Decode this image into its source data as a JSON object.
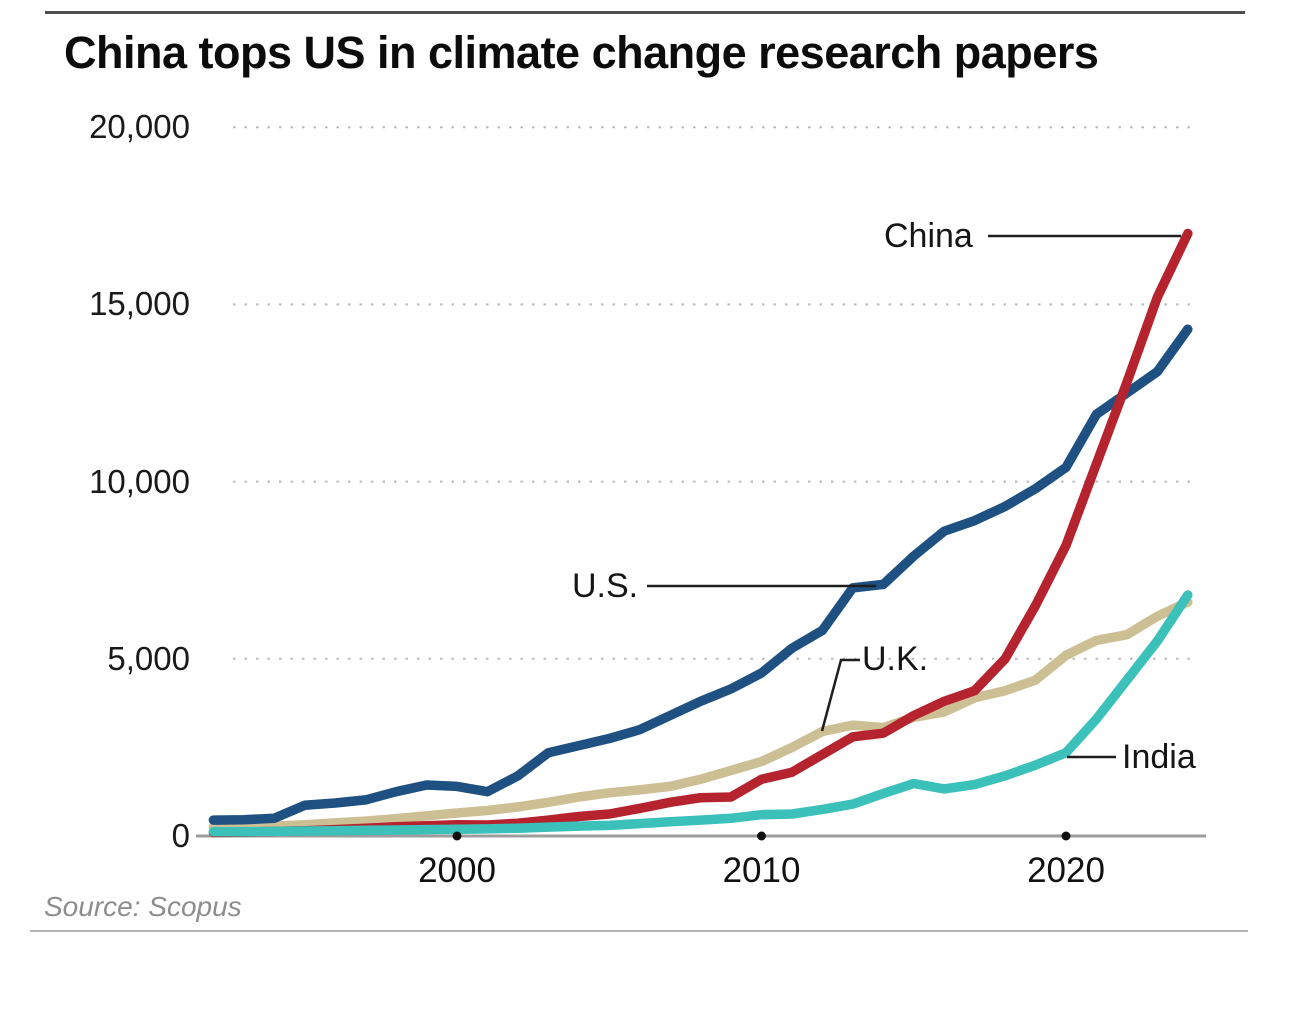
{
  "title": "China tops US in climate change research papers",
  "source": "Source: Scopus",
  "chart_data": {
    "type": "line",
    "title": "China tops US in climate change research papers",
    "xlabel": "",
    "ylabel": "",
    "x_range": [
      1992,
      2024
    ],
    "ylim": [
      0,
      20000
    ],
    "grid": "horizontal-dotted",
    "legend": "inline-annotations",
    "x": [
      1992,
      1993,
      1994,
      1995,
      1996,
      1997,
      1998,
      1999,
      2000,
      2001,
      2002,
      2003,
      2004,
      2005,
      2006,
      2007,
      2008,
      2009,
      2010,
      2011,
      2012,
      2013,
      2014,
      2015,
      2016,
      2017,
      2018,
      2019,
      2020,
      2021,
      2022,
      2023,
      2024
    ],
    "x_ticks": [
      {
        "value": 2000,
        "label": "2000"
      },
      {
        "value": 2010,
        "label": "2010"
      },
      {
        "value": 2020,
        "label": "2020"
      }
    ],
    "y_ticks": [
      {
        "value": 0,
        "label": "0"
      },
      {
        "value": 5000,
        "label": "5,000"
      },
      {
        "value": 10000,
        "label": "10,000"
      },
      {
        "value": 15000,
        "label": "15,000"
      },
      {
        "value": 20000,
        "label": "20,000"
      }
    ],
    "series": [
      {
        "name": "U.K.",
        "color": "#cdbf94",
        "values": [
          250,
          260,
          280,
          320,
          370,
          420,
          490,
          570,
          650,
          720,
          820,
          950,
          1100,
          1220,
          1300,
          1400,
          1600,
          1850,
          2100,
          2500,
          2950,
          3130,
          3060,
          3350,
          3500,
          3900,
          4100,
          4400,
          5100,
          5520,
          5680,
          6200,
          6600
        ]
      },
      {
        "name": "U.S.",
        "color": "#1e5181",
        "values": [
          450,
          460,
          500,
          870,
          930,
          1020,
          1250,
          1440,
          1400,
          1250,
          1700,
          2350,
          2550,
          2750,
          3000,
          3400,
          3800,
          4150,
          4600,
          5300,
          5800,
          7000,
          7100,
          7900,
          8600,
          8900,
          9300,
          9800,
          10400,
          11900,
          12500,
          13100,
          14300
        ]
      },
      {
        "name": "China",
        "color": "#b5232e",
        "values": [
          100,
          110,
          130,
          150,
          180,
          220,
          260,
          290,
          320,
          310,
          360,
          450,
          550,
          620,
          780,
          950,
          1080,
          1100,
          1600,
          1800,
          2300,
          2800,
          2900,
          3400,
          3800,
          4100,
          5000,
          6500,
          8200,
          10500,
          12800,
          15200,
          17000
        ]
      },
      {
        "name": "India",
        "color": "#3cc0ba",
        "values": [
          120,
          120,
          130,
          140,
          150,
          160,
          170,
          180,
          190,
          200,
          220,
          250,
          280,
          300,
          350,
          400,
          450,
          500,
          600,
          620,
          750,
          900,
          1200,
          1480,
          1330,
          1450,
          1700,
          2000,
          2350,
          3300,
          4400,
          5500,
          6800
        ]
      }
    ],
    "annotations": [
      {
        "series": "China",
        "label": "China"
      },
      {
        "series": "U.S.",
        "label": "U.S."
      },
      {
        "series": "U.K.",
        "label": "U.K."
      },
      {
        "series": "India",
        "label": "India"
      }
    ]
  }
}
